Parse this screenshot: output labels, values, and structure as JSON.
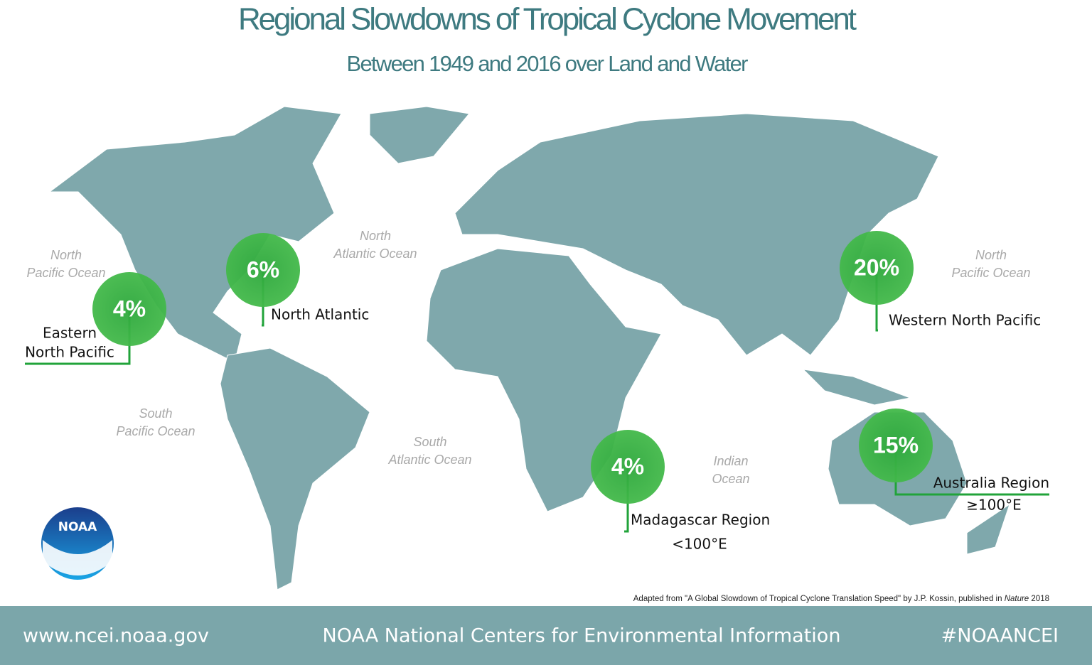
{
  "header": {
    "title": "Regional Slowdowns of Tropical Cyclone Movement",
    "subtitle": "Between 1949 and 2016 over Land and Water"
  },
  "oceans": [
    {
      "lines": [
        "North",
        "Pacific Ocean"
      ]
    },
    {
      "lines": [
        "North",
        "Atlantic Ocean"
      ]
    },
    {
      "lines": [
        "North",
        "Pacific Ocean"
      ]
    },
    {
      "lines": [
        "South",
        "Pacific Ocean"
      ]
    },
    {
      "lines": [
        "South",
        "Atlantic Ocean"
      ]
    },
    {
      "lines": [
        "Indian",
        "Ocean"
      ]
    }
  ],
  "regions": [
    {
      "value": "4%",
      "label": [
        "Eastern",
        "North Pacific"
      ]
    },
    {
      "value": "6%",
      "label": [
        "North Atlantic"
      ]
    },
    {
      "value": "20%",
      "label": [
        "Western North Pacific"
      ]
    },
    {
      "value": "4%",
      "label": [
        "Madagascar Region",
        "<100°E"
      ]
    },
    {
      "value": "15%",
      "label": [
        "Australia Region",
        "≥100°E"
      ]
    }
  ],
  "logo": "NOAA",
  "source": {
    "before": "Adapted from \"A Global Slowdown of Tropical Cyclone Translation Speed\" by J.P. Kossin, published in ",
    "italic": "Nature",
    "after": " 2018"
  },
  "footer": {
    "url": "www.ncei.noaa.gov",
    "org": "NOAA National Centers for Environmental Information",
    "hashtag": "#NOAANCEI"
  }
}
